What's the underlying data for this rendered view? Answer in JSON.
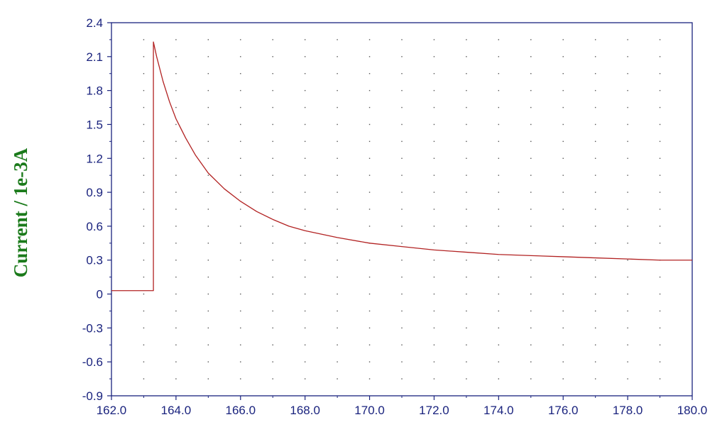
{
  "chart_data": {
    "type": "line",
    "title": "",
    "xlabel": "",
    "ylabel": "Current / 1e-3A",
    "xlim": [
      162.0,
      180.0
    ],
    "ylim": [
      -0.9,
      2.4
    ],
    "x_ticks": [
      "162.0",
      "164.0",
      "166.0",
      "168.0",
      "170.0",
      "172.0",
      "174.0",
      "176.0",
      "178.0",
      "180.0"
    ],
    "y_ticks": [
      "2.4",
      "2.1",
      "1.8",
      "1.5",
      "1.2",
      "0.9",
      "0.6",
      "0.3",
      "0",
      "-0.3",
      "-0.6",
      "-0.9"
    ],
    "x_tick_values": [
      162,
      164,
      166,
      168,
      170,
      172,
      174,
      176,
      178,
      180
    ],
    "y_tick_values": [
      2.4,
      2.1,
      1.8,
      1.5,
      1.2,
      0.9,
      0.6,
      0.3,
      0,
      -0.3,
      -0.6,
      -0.9
    ],
    "grid": true,
    "legend": "none",
    "series": [
      {
        "color": "#b22222",
        "x": [
          162.0,
          163.3,
          163.3,
          163.4,
          163.6,
          163.8,
          164.0,
          164.3,
          164.6,
          165.0,
          165.5,
          166.0,
          166.5,
          167.0,
          167.5,
          168.0,
          169.0,
          170.0,
          171.0,
          172.0,
          173.0,
          174.0,
          175.0,
          176.0,
          177.0,
          178.0,
          179.0,
          180.0
        ],
        "y": [
          0.03,
          0.03,
          2.23,
          2.1,
          1.88,
          1.7,
          1.55,
          1.38,
          1.23,
          1.07,
          0.93,
          0.82,
          0.73,
          0.66,
          0.6,
          0.56,
          0.5,
          0.45,
          0.42,
          0.39,
          0.37,
          0.35,
          0.34,
          0.33,
          0.32,
          0.31,
          0.3,
          0.3
        ]
      }
    ],
    "colors": {
      "axis_text": "#1a237e",
      "ylabel": "#1a7a1a",
      "frame": "#1a237e",
      "grid": "#555555"
    }
  }
}
